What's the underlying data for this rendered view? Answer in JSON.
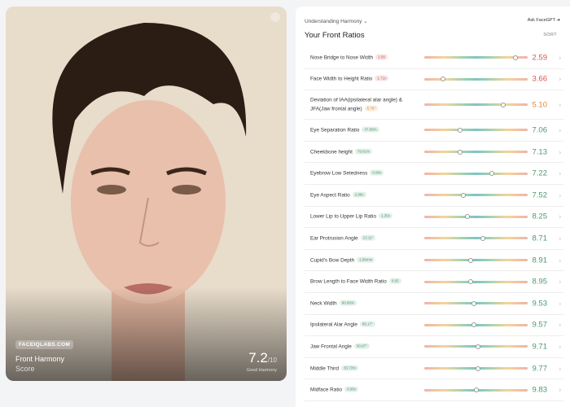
{
  "photo_card": {
    "watermark": "FACEIQLABS.COM",
    "title": "Front Harmony",
    "subtitle": "Score",
    "score": "7.2",
    "score_max": "/10",
    "rating": "Good Harmony"
  },
  "panel": {
    "dropdown": "Understanding Harmony",
    "link": "Ask FaceGPT",
    "title": "Your Front Ratios",
    "sort": "SORT",
    "rows": [
      {
        "label": "Nose Bridge to Nose Width",
        "badge": "2.58",
        "score": "2.59",
        "color": "#d9534f"
      },
      {
        "label": "Face Width to Height Ratio",
        "badge": "1.71x",
        "score": "3.66",
        "color": "#d9534f"
      },
      {
        "label": "Deviation of IAA(ipsilateral alar angle) & JFA(Jaw frontal angle)",
        "badge": "5.78°",
        "score": "5.10",
        "color": "#e0892e"
      },
      {
        "label": "Eye Separation Ratio",
        "badge": "47.89%",
        "score": "7.06",
        "color": "#4a9a6a"
      },
      {
        "label": "Cheekbone height",
        "badge": "79.81%",
        "score": "7.13",
        "color": "#4a9a6a"
      },
      {
        "label": "Eyebrow Low Setedness",
        "badge": "0.90x",
        "score": "7.22",
        "color": "#4a9a6a"
      },
      {
        "label": "Eye Aspect Ratio",
        "badge": "2.98x",
        "score": "7.52",
        "color": "#4a9a6a"
      },
      {
        "label": "Lower Lip to Upper Lip Ratio",
        "badge": "1.35x",
        "score": "8.25",
        "color": "#4a9a6a"
      },
      {
        "label": "Ear Protrusion Angle",
        "badge": "13.11°",
        "score": "8.71",
        "color": "#4a9a6a"
      },
      {
        "label": "Cupid's Bow Depth",
        "badge": "1.95mm",
        "score": "8.91",
        "color": "#4a9a6a"
      },
      {
        "label": "Brow Length to Face Width Ratio",
        "badge": "0.65",
        "score": "8.95",
        "color": "#4a9a6a"
      },
      {
        "label": "Neck Width",
        "badge": "90.89%",
        "score": "9.53",
        "color": "#4a9a6a"
      },
      {
        "label": "Ipsilateral Alar Angle",
        "badge": "85.17°",
        "score": "9.57",
        "color": "#4a9a6a"
      },
      {
        "label": "Jaw Frontal Angle",
        "badge": "30.97°",
        "score": "9.71",
        "color": "#4a9a6a"
      },
      {
        "label": "Middle Third",
        "badge": "33.73%",
        "score": "9.77",
        "color": "#4a9a6a"
      },
      {
        "label": "Midface Ratio",
        "badge": "0.95x",
        "score": "9.83",
        "color": "#4a9a6a"
      }
    ]
  }
}
